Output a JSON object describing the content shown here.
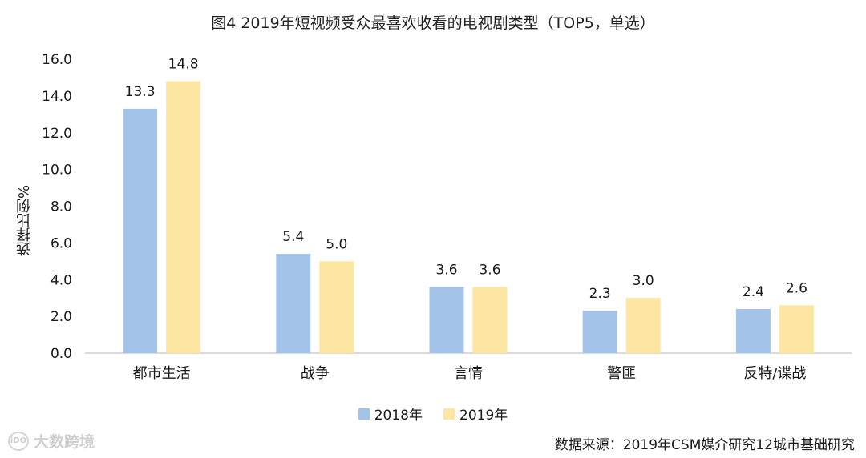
{
  "chart_data": {
    "type": "bar",
    "title": "图4  2019年短视频受众最喜欢收看的电视剧类型（TOP5，单选）",
    "ylabel": "选择比例%",
    "xlabel": "",
    "categories": [
      "都市生活",
      "战争",
      "言情",
      "警匪",
      "反特/谍战"
    ],
    "series": [
      {
        "name": "2018年",
        "values": [
          13.3,
          5.4,
          3.6,
          2.3,
          2.4
        ],
        "color": "#a3c4e8"
      },
      {
        "name": "2019年",
        "values": [
          14.8,
          5.0,
          3.6,
          3.0,
          2.6
        ],
        "color": "#fce6a2"
      }
    ],
    "ylim": [
      0,
      16
    ],
    "yticks": [
      "0.0",
      "2.0",
      "4.0",
      "6.0",
      "8.0",
      "10.0",
      "12.0",
      "14.0",
      "16.0"
    ],
    "grid": false,
    "legend_position": "bottom-center"
  },
  "source": "数据来源：2019年CSM媒介研究12城市基础研究",
  "watermark": {
    "logo": "iDO",
    "text": "大数跨境"
  }
}
